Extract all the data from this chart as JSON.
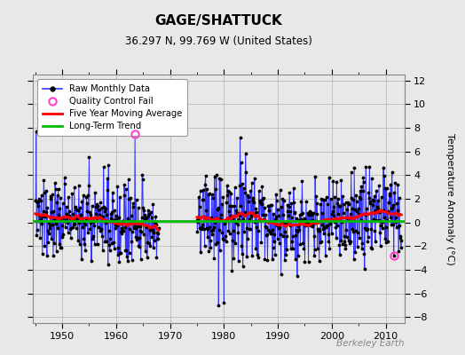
{
  "title": "GAGE/SHATTUCK",
  "subtitle": "36.297 N, 99.769 W (United States)",
  "ylabel_right": "Temperature Anomaly (°C)",
  "watermark": "Berkeley Earth",
  "ylim": [
    -8.5,
    12.5
  ],
  "yticks": [
    -8,
    -6,
    -4,
    -2,
    0,
    2,
    4,
    6,
    8,
    10,
    12
  ],
  "xlim": [
    1944.5,
    2013.5
  ],
  "xticks": [
    1950,
    1960,
    1970,
    1980,
    1990,
    2000,
    2010
  ],
  "bg_color": "#e8e8e8",
  "plot_bg_color": "#e8e8e8",
  "line_color": "#3333ff",
  "dot_color": "#000000",
  "ma_color": "#ff0000",
  "trend_color": "#00bb00",
  "qc_color": "#ff44cc",
  "start_year": 1945,
  "gap_start": 1968,
  "gap_end": 1975,
  "end_year": 2013,
  "seed": 137
}
